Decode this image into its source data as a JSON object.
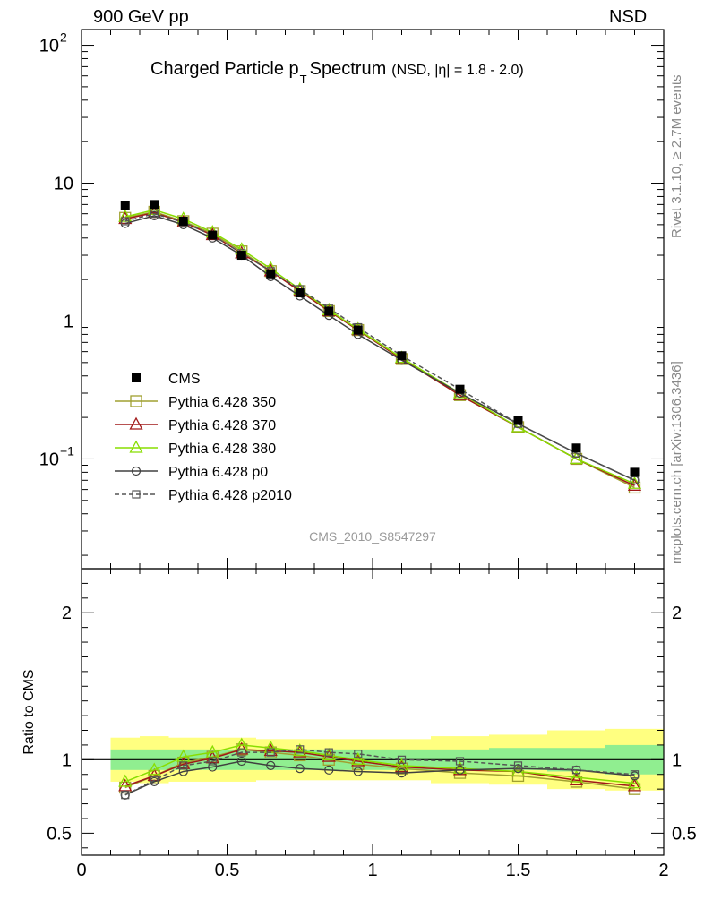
{
  "header": {
    "left": "900 GeV pp",
    "right": "NSD"
  },
  "side_labels": {
    "rivet": "Rivet 3.1.10, ≥ 2.7M events",
    "mcplots": "mcplots.cern.ch [arXiv:1306.3436]"
  },
  "chart_data": [
    {
      "type": "line",
      "title_main": "Charged Particle p",
      "title_sub": "T",
      "title_main2": " Spectrum",
      "title_extra": "(NSD, |η| = 1.8 - 2.0)",
      "analysis_label": "CMS_2010_S8547297",
      "yscale": "log",
      "xlim": [
        0,
        2
      ],
      "ylim": [
        0.016,
        130
      ],
      "yticks": [
        {
          "value": 100,
          "base": "10",
          "exp": "2"
        },
        {
          "value": 10,
          "base": "10",
          "exp": ""
        },
        {
          "value": 1,
          "base": "1",
          "exp": ""
        },
        {
          "value": 0.1,
          "base": "10",
          "exp": "−1"
        }
      ],
      "x": [
        0.15,
        0.25,
        0.35,
        0.45,
        0.55,
        0.65,
        0.75,
        0.85,
        0.95,
        1.1,
        1.3,
        1.5,
        1.7,
        1.9
      ],
      "data": {
        "name": "CMS",
        "values": [
          6.9,
          7.0,
          5.3,
          4.2,
          3.0,
          2.2,
          1.6,
          1.18,
          0.86,
          0.56,
          0.32,
          0.19,
          0.12,
          0.08
        ]
      },
      "series": [
        {
          "name": "Pythia 6.428 350",
          "color": "#a0a030",
          "marker": "square",
          "values": [
            5.6,
            6.2,
            5.3,
            4.3,
            3.2,
            2.3,
            1.65,
            1.18,
            0.86,
            0.53,
            0.29,
            0.17,
            0.1,
            0.062
          ]
        },
        {
          "name": "Pythia 6.428 370",
          "color": "#a01818",
          "marker": "triangle",
          "values": [
            5.5,
            6.1,
            5.2,
            4.2,
            3.1,
            2.3,
            1.65,
            1.18,
            0.86,
            0.53,
            0.29,
            0.17,
            0.1,
            0.064
          ]
        },
        {
          "name": "Pythia 6.428 380",
          "color": "#88dd00",
          "marker": "triangle",
          "values": [
            5.7,
            6.4,
            5.5,
            4.4,
            3.3,
            2.4,
            1.7,
            1.2,
            0.87,
            0.54,
            0.3,
            0.17,
            0.1,
            0.066
          ]
        },
        {
          "name": "Pythia 6.428 p0",
          "color": "#404040",
          "marker": "circle",
          "values": [
            5.1,
            5.8,
            5.0,
            4.0,
            3.0,
            2.1,
            1.52,
            1.1,
            0.8,
            0.52,
            0.3,
            0.18,
            0.11,
            0.07
          ]
        },
        {
          "name": "Pythia 6.428 p2010",
          "color": "#555555",
          "marker": "square-small",
          "dashed": true,
          "values": [
            5.3,
            6.0,
            5.2,
            4.2,
            3.1,
            2.3,
            1.7,
            1.24,
            0.9,
            0.56,
            0.32,
            0.18,
            0.11,
            0.07
          ]
        }
      ]
    },
    {
      "type": "line",
      "ylabel": "Ratio to CMS",
      "ylim": [
        0.35,
        2.3
      ],
      "yticks": [
        {
          "value": 0.5,
          "label": "0.5"
        },
        {
          "value": 1,
          "label": "1"
        },
        {
          "value": 2,
          "label": "2"
        }
      ],
      "xlim": [
        0,
        2
      ],
      "xticks": [
        {
          "value": 0,
          "label": "0"
        },
        {
          "value": 0.5,
          "label": "0.5"
        },
        {
          "value": 1,
          "label": "1"
        },
        {
          "value": 1.5,
          "label": "1.5"
        },
        {
          "value": 2,
          "label": "2"
        }
      ],
      "bands": {
        "edges": [
          0.1,
          0.2,
          0.3,
          0.4,
          0.5,
          0.6,
          0.7,
          0.8,
          0.9,
          1.0,
          1.2,
          1.4,
          1.6,
          1.8,
          2.0
        ],
        "inner_lo": [
          0.93,
          0.93,
          0.93,
          0.93,
          0.93,
          0.93,
          0.93,
          0.93,
          0.93,
          0.93,
          0.93,
          0.93,
          0.92,
          0.9
        ],
        "inner_hi": [
          1.07,
          1.07,
          1.07,
          1.07,
          1.07,
          1.07,
          1.07,
          1.07,
          1.07,
          1.07,
          1.07,
          1.08,
          1.08,
          1.1
        ],
        "outer_lo": [
          0.85,
          0.84,
          0.85,
          0.85,
          0.85,
          0.86,
          0.86,
          0.86,
          0.86,
          0.86,
          0.84,
          0.83,
          0.8,
          0.79
        ],
        "outer_hi": [
          1.15,
          1.16,
          1.15,
          1.15,
          1.15,
          1.14,
          1.14,
          1.14,
          1.14,
          1.14,
          1.16,
          1.17,
          1.2,
          1.21
        ],
        "inner_color": "#90ee90",
        "outer_color": "#ffff80"
      },
      "series": [
        {
          "name": "Pythia 6.428 350",
          "color": "#a0a030",
          "marker": "square",
          "values": [
            0.81,
            0.89,
            0.98,
            1.02,
            1.07,
            1.05,
            1.03,
            1.0,
            0.97,
            0.94,
            0.91,
            0.89,
            0.85,
            0.8
          ]
        },
        {
          "name": "Pythia 6.428 370",
          "color": "#a01818",
          "marker": "triangle",
          "values": [
            0.82,
            0.89,
            0.97,
            1.01,
            1.07,
            1.06,
            1.05,
            1.02,
            0.99,
            0.95,
            0.93,
            0.92,
            0.86,
            0.82
          ]
        },
        {
          "name": "Pythia 6.428 380",
          "color": "#88dd00",
          "marker": "triangle",
          "values": [
            0.85,
            0.93,
            1.02,
            1.05,
            1.1,
            1.08,
            1.06,
            1.03,
            1.0,
            0.96,
            0.94,
            0.92,
            0.88,
            0.84
          ]
        },
        {
          "name": "Pythia 6.428 p0",
          "color": "#404040",
          "marker": "circle",
          "values": [
            0.76,
            0.85,
            0.92,
            0.95,
            0.99,
            0.96,
            0.94,
            0.93,
            0.92,
            0.91,
            0.93,
            0.94,
            0.93,
            0.89
          ]
        },
        {
          "name": "Pythia 6.428 p2010",
          "color": "#555555",
          "marker": "square-small",
          "dashed": true,
          "values": [
            0.76,
            0.86,
            0.96,
            0.99,
            1.05,
            1.05,
            1.07,
            1.05,
            1.04,
            1.0,
            0.99,
            0.96,
            0.93,
            0.9
          ]
        }
      ]
    }
  ]
}
